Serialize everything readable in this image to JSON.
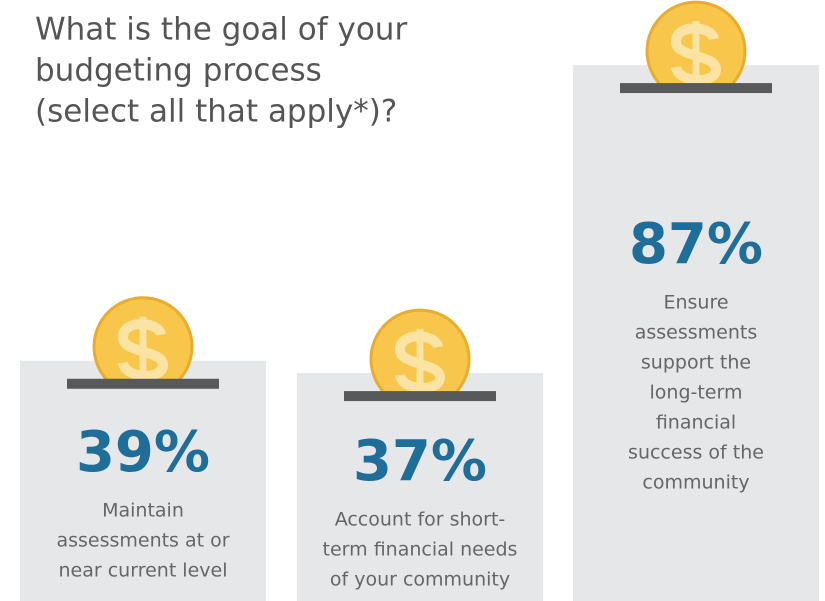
{
  "chart_data": {
    "type": "bar",
    "title": [
      "What is the goal of your",
      "budgeting process",
      "(select all that apply*)?"
    ],
    "categories": [
      [
        "Maintain",
        "assessments at or",
        "near current level"
      ],
      [
        "Account for short-",
        "term financial needs",
        "of your community"
      ],
      [
        "Ensure",
        "assessments",
        "support the",
        "long-term",
        "financial",
        "success of the",
        "community"
      ]
    ],
    "values": [
      39,
      37,
      87
    ],
    "value_labels": [
      "39%",
      "37%",
      "87%"
    ],
    "color": "#e6e7e9"
  }
}
